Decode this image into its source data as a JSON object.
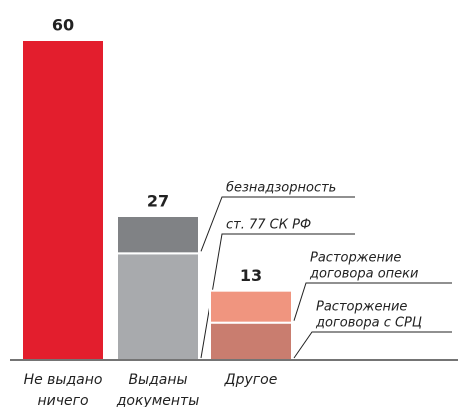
{
  "chart_data": {
    "type": "stacked_bar",
    "categories": [
      [
        "Не выдано",
        "ничего"
      ],
      [
        "Выданы",
        "документы"
      ],
      [
        "Другое"
      ]
    ],
    "totals": [
      60,
      27,
      13
    ],
    "ylim": [
      0,
      60
    ],
    "bars": [
      {
        "segments": [
          {
            "value": 60,
            "color": "#e31e2d"
          }
        ]
      },
      {
        "segments": [
          {
            "name": [
              "ст. 77 СК РФ"
            ],
            "value": 20,
            "color": "#a8aaad"
          },
          {
            "name": [
              "безнадзорность"
            ],
            "value": 7,
            "color": "#808285"
          }
        ]
      },
      {
        "segments": [
          {
            "name": [
              "Расторжение",
              "договора с СРЦ"
            ],
            "value": 7,
            "color": "#c97d6f"
          },
          {
            "name": [
              "Расторжение",
              "договора опеки"
            ],
            "value": 6,
            "color": "#f0957f"
          }
        ]
      }
    ]
  }
}
